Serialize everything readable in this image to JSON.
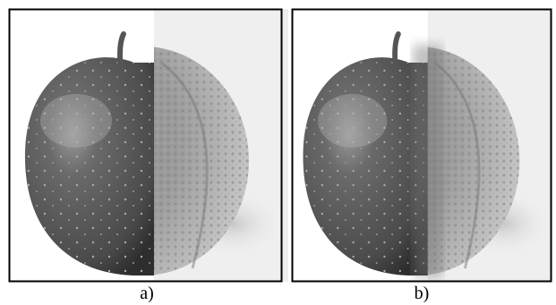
{
  "panels": [
    {
      "caption": "a)"
    },
    {
      "caption": "b)"
    }
  ]
}
